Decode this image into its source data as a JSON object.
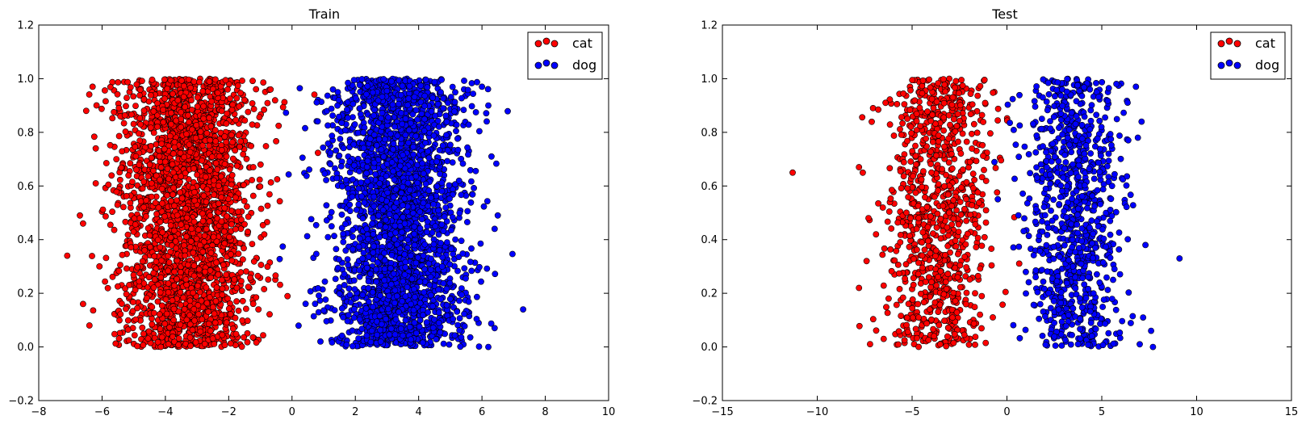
{
  "chart_data": [
    {
      "type": "scatter",
      "title": "Train",
      "xlabel": "",
      "ylabel": "",
      "xlim": [
        -8,
        10
      ],
      "ylim": [
        -0.2,
        1.2
      ],
      "xticks": [
        "−8",
        "−6",
        "−4",
        "−2",
        "0",
        "2",
        "4",
        "6",
        "8",
        "10"
      ],
      "xtick_values": [
        -8,
        -6,
        -4,
        -2,
        0,
        2,
        4,
        6,
        8,
        10
      ],
      "yticks": [
        "−0.2",
        "0.0",
        "0.2",
        "0.4",
        "0.6",
        "0.8",
        "1.0",
        "1.2"
      ],
      "ytick_values": [
        -0.2,
        0,
        0.2,
        0.4,
        0.6,
        0.8,
        1.0,
        1.2
      ],
      "grid": false,
      "legend_position": "top-right",
      "series": [
        {
          "name": "cat",
          "color": "#ff0000",
          "distribution": {
            "x_center": -3.3,
            "x_spread": 1.05,
            "y_min": 0.0,
            "y_max": 1.0,
            "count": 2600
          },
          "outliers": [
            [
              -7.1,
              0.34
            ],
            [
              -6.7,
              0.49
            ],
            [
              -6.6,
              0.16
            ],
            [
              -6.5,
              0.88
            ],
            [
              -6.4,
              0.08
            ],
            [
              -6.3,
              0.97
            ],
            [
              -6.2,
              0.74
            ],
            [
              -6.6,
              0.46
            ],
            [
              -6.2,
              0.61
            ]
          ]
        },
        {
          "name": "dog",
          "color": "#0000ff",
          "distribution": {
            "x_center": 3.4,
            "x_spread": 1.05,
            "y_min": 0.0,
            "y_max": 1.0,
            "count": 2600
          },
          "outliers": [
            [
              7.3,
              0.14
            ],
            [
              6.5,
              0.49
            ],
            [
              6.4,
              0.44
            ],
            [
              6.3,
              0.71
            ],
            [
              6.2,
              0.9
            ],
            [
              6.2,
              0.0
            ],
            [
              6.0,
              0.97
            ],
            [
              6.4,
              0.07
            ]
          ]
        }
      ],
      "legend": [
        {
          "label": "cat",
          "color": "#ff0000"
        },
        {
          "label": "dog",
          "color": "#0000ff"
        }
      ]
    },
    {
      "type": "scatter",
      "title": "Test",
      "xlabel": "",
      "ylabel": "",
      "xlim": [
        -15,
        15
      ],
      "ylim": [
        -0.2,
        1.2
      ],
      "xticks": [
        "−15",
        "−10",
        "−5",
        "0",
        "5",
        "10",
        "15"
      ],
      "xtick_values": [
        -15,
        -10,
        -5,
        0,
        5,
        10,
        15
      ],
      "yticks": [
        "−0.2",
        "0.0",
        "0.2",
        "0.4",
        "0.6",
        "0.8",
        "1.0",
        "1.2"
      ],
      "ytick_values": [
        -0.2,
        0,
        0.2,
        0.4,
        0.6,
        0.8,
        1.0,
        1.2
      ],
      "grid": false,
      "legend_position": "top-right",
      "series": [
        {
          "name": "cat",
          "color": "#ff0000",
          "distribution": {
            "x_center": -3.6,
            "x_spread": 1.3,
            "y_min": 0.0,
            "y_max": 1.0,
            "count": 900
          },
          "outliers": [
            [
              -11.3,
              0.65
            ],
            [
              -7.8,
              0.67
            ],
            [
              -7.8,
              0.22
            ],
            [
              -7.3,
              0.48
            ],
            [
              -7.4,
              0.32
            ],
            [
              -6.5,
              0.03
            ],
            [
              -6.4,
              0.91
            ],
            [
              -6.9,
              0.42
            ]
          ]
        },
        {
          "name": "dog",
          "color": "#0000ff",
          "distribution": {
            "x_center": 3.5,
            "x_spread": 1.3,
            "y_min": 0.0,
            "y_max": 1.0,
            "count": 900
          },
          "outliers": [
            [
              9.1,
              0.33
            ],
            [
              7.7,
              0.0
            ],
            [
              7.6,
              0.06
            ],
            [
              7.1,
              0.84
            ],
            [
              6.8,
              0.97
            ],
            [
              6.9,
              0.78
            ],
            [
              7.3,
              0.38
            ],
            [
              7.0,
              0.01
            ]
          ]
        }
      ],
      "legend": [
        {
          "label": "cat",
          "color": "#ff0000"
        },
        {
          "label": "dog",
          "color": "#0000ff"
        }
      ]
    }
  ]
}
